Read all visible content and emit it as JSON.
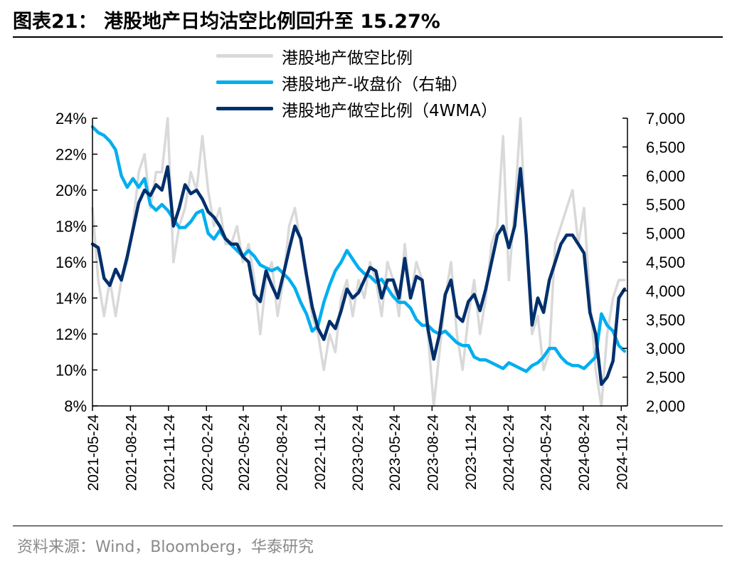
{
  "title": "图表21：  港股地产日均沽空比例回升至 15.27%",
  "source": "资料来源：Wind，Bloomberg，华泰研究",
  "colors": {
    "short_ratio": "#d9d9d9",
    "close": "#00aeef",
    "wma": "#002f6c"
  },
  "chart_data": {
    "type": "line",
    "title": "港股地产日均沽空比例回升至 15.27%",
    "xlabel": "",
    "ylabel_left": "",
    "ylabel_right": "",
    "left_axis": {
      "ylim": [
        0.08,
        0.24
      ],
      "ticks": [
        "8%",
        "10%",
        "12%",
        "14%",
        "16%",
        "18%",
        "20%",
        "22%",
        "24%"
      ]
    },
    "right_axis": {
      "ylim": [
        2000,
        7000
      ],
      "ticks": [
        "2,000",
        "2,500",
        "3,000",
        "3,500",
        "4,000",
        "4,500",
        "5,000",
        "5,500",
        "6,000",
        "6,500",
        "7,000"
      ]
    },
    "x_ticks": [
      "2021-05-24",
      "2021-08-24",
      "2021-11-24",
      "2022-02-24",
      "2022-05-24",
      "2022-08-24",
      "2022-11-24",
      "2023-02-24",
      "2023-05-24",
      "2023-08-24",
      "2023-11-24",
      "2024-02-24",
      "2024-05-24",
      "2024-08-24",
      "2024-11-24"
    ],
    "legend": [
      "港股地产做空比例",
      "港股地产-收盘价（右轴）",
      "港股地产做空比例（4WMA）"
    ],
    "legend_position": "top",
    "grid": false,
    "series": [
      {
        "name": "港股地产做空比例",
        "axis": "left",
        "x": [
          "2021-05-24",
          "2021-06-07",
          "2021-06-21",
          "2021-07-05",
          "2021-07-19",
          "2021-08-02",
          "2021-08-16",
          "2021-08-30",
          "2021-09-13",
          "2021-09-27",
          "2021-10-11",
          "2021-10-25",
          "2021-11-08",
          "2021-11-22",
          "2021-12-06",
          "2021-12-20",
          "2022-01-03",
          "2022-01-17",
          "2022-01-31",
          "2022-02-14",
          "2022-02-28",
          "2022-03-14",
          "2022-03-28",
          "2022-04-11",
          "2022-04-25",
          "2022-05-09",
          "2022-05-23",
          "2022-06-06",
          "2022-06-20",
          "2022-07-04",
          "2022-07-18",
          "2022-08-01",
          "2022-08-15",
          "2022-08-29",
          "2022-09-12",
          "2022-09-26",
          "2022-10-10",
          "2022-10-24",
          "2022-11-07",
          "2022-11-21",
          "2022-12-05",
          "2022-12-19",
          "2023-01-02",
          "2023-01-16",
          "2023-01-30",
          "2023-02-13",
          "2023-02-27",
          "2023-03-13",
          "2023-03-27",
          "2023-04-10",
          "2023-04-24",
          "2023-05-08",
          "2023-05-22",
          "2023-06-05",
          "2023-06-19",
          "2023-07-03",
          "2023-07-17",
          "2023-07-31",
          "2023-08-14",
          "2023-08-28",
          "2023-09-11",
          "2023-09-25",
          "2023-10-09",
          "2023-10-23",
          "2023-11-06",
          "2023-11-20",
          "2023-12-04",
          "2023-12-18",
          "2024-01-01",
          "2024-01-15",
          "2024-01-29",
          "2024-02-12",
          "2024-02-26",
          "2024-03-11",
          "2024-03-25",
          "2024-04-08",
          "2024-04-22",
          "2024-05-06",
          "2024-05-20",
          "2024-06-03",
          "2024-06-17",
          "2024-07-01",
          "2024-07-15",
          "2024-07-29",
          "2024-08-12",
          "2024-08-26",
          "2024-09-09",
          "2024-09-23",
          "2024-10-07",
          "2024-10-21",
          "2024-11-04",
          "2024-11-18",
          "2024-12-02"
        ],
        "values": [
          0.19,
          0.15,
          0.13,
          0.15,
          0.13,
          0.15,
          0.16,
          0.18,
          0.21,
          0.22,
          0.19,
          0.21,
          0.21,
          0.24,
          0.16,
          0.18,
          0.19,
          0.21,
          0.2,
          0.23,
          0.2,
          0.18,
          0.19,
          0.17,
          0.17,
          0.18,
          0.16,
          0.17,
          0.15,
          0.12,
          0.15,
          0.16,
          0.13,
          0.15,
          0.18,
          0.19,
          0.17,
          0.15,
          0.13,
          0.12,
          0.1,
          0.12,
          0.11,
          0.14,
          0.15,
          0.13,
          0.15,
          0.14,
          0.16,
          0.15,
          0.13,
          0.16,
          0.15,
          0.13,
          0.17,
          0.14,
          0.16,
          0.15,
          0.12,
          0.08,
          0.11,
          0.14,
          0.16,
          0.12,
          0.1,
          0.13,
          0.15,
          0.12,
          0.14,
          0.17,
          0.18,
          0.23,
          0.15,
          0.19,
          0.24,
          0.17,
          0.12,
          0.13,
          0.1,
          0.11,
          0.17,
          0.18,
          0.19,
          0.2,
          0.17,
          0.19,
          0.14,
          0.1,
          0.08,
          0.12,
          0.14,
          0.15,
          0.15
        ]
      },
      {
        "name": "港股地产-收盘价（右轴）",
        "axis": "right",
        "x": [
          "2021-05-24",
          "2021-06-07",
          "2021-06-21",
          "2021-07-05",
          "2021-07-19",
          "2021-08-02",
          "2021-08-16",
          "2021-08-30",
          "2021-09-13",
          "2021-09-27",
          "2021-10-11",
          "2021-10-25",
          "2021-11-08",
          "2021-11-22",
          "2021-12-06",
          "2021-12-20",
          "2022-01-03",
          "2022-01-17",
          "2022-01-31",
          "2022-02-14",
          "2022-02-28",
          "2022-03-14",
          "2022-03-28",
          "2022-04-11",
          "2022-04-25",
          "2022-05-09",
          "2022-05-23",
          "2022-06-06",
          "2022-06-20",
          "2022-07-04",
          "2022-07-18",
          "2022-08-01",
          "2022-08-15",
          "2022-08-29",
          "2022-09-12",
          "2022-09-26",
          "2022-10-10",
          "2022-10-24",
          "2022-11-07",
          "2022-11-21",
          "2022-12-05",
          "2022-12-19",
          "2023-01-02",
          "2023-01-16",
          "2023-01-30",
          "2023-02-13",
          "2023-02-27",
          "2023-03-13",
          "2023-03-27",
          "2023-04-10",
          "2023-04-24",
          "2023-05-08",
          "2023-05-22",
          "2023-06-05",
          "2023-06-19",
          "2023-07-03",
          "2023-07-17",
          "2023-07-31",
          "2023-08-14",
          "2023-08-28",
          "2023-09-11",
          "2023-09-25",
          "2023-10-09",
          "2023-10-23",
          "2023-11-06",
          "2023-11-20",
          "2023-12-04",
          "2023-12-18",
          "2024-01-01",
          "2024-01-15",
          "2024-01-29",
          "2024-02-12",
          "2024-02-26",
          "2024-03-11",
          "2024-03-25",
          "2024-04-08",
          "2024-04-22",
          "2024-05-06",
          "2024-05-20",
          "2024-06-03",
          "2024-06-17",
          "2024-07-01",
          "2024-07-15",
          "2024-07-29",
          "2024-08-12",
          "2024-08-26",
          "2024-09-09",
          "2024-09-23",
          "2024-10-07",
          "2024-10-21",
          "2024-11-04",
          "2024-11-18",
          "2024-12-02"
        ],
        "values": [
          6850,
          6750,
          6700,
          6600,
          6450,
          6000,
          5800,
          5950,
          5800,
          5950,
          5500,
          5400,
          5500,
          5400,
          5250,
          5100,
          5100,
          5200,
          5350,
          5400,
          5000,
          4900,
          5050,
          4900,
          4800,
          4700,
          4600,
          4700,
          4600,
          4450,
          4400,
          4350,
          4400,
          4300,
          4200,
          4050,
          3800,
          3600,
          3300,
          3400,
          3800,
          4100,
          4350,
          4500,
          4700,
          4550,
          4400,
          4300,
          4250,
          4150,
          4200,
          4050,
          3900,
          3800,
          3800,
          3700,
          3500,
          3400,
          3400,
          3300,
          3250,
          3300,
          3200,
          3100,
          3050,
          3050,
          2850,
          2800,
          2800,
          2750,
          2700,
          2650,
          2750,
          2700,
          2650,
          2600,
          2700,
          2750,
          2850,
          3000,
          3000,
          2850,
          2750,
          2700,
          2700,
          2650,
          2750,
          2850,
          3600,
          3400,
          3300,
          3050,
          2950
        ]
      },
      {
        "name": "港股地产做空比例（4WMA）",
        "axis": "left",
        "x": [
          "2021-05-24",
          "2021-06-07",
          "2021-06-21",
          "2021-07-05",
          "2021-07-19",
          "2021-08-02",
          "2021-08-16",
          "2021-08-30",
          "2021-09-13",
          "2021-09-27",
          "2021-10-11",
          "2021-10-25",
          "2021-11-08",
          "2021-11-22",
          "2021-12-06",
          "2021-12-20",
          "2022-01-03",
          "2022-01-17",
          "2022-01-31",
          "2022-02-14",
          "2022-02-28",
          "2022-03-14",
          "2022-03-28",
          "2022-04-11",
          "2022-04-25",
          "2022-05-09",
          "2022-05-23",
          "2022-06-06",
          "2022-06-20",
          "2022-07-04",
          "2022-07-18",
          "2022-08-01",
          "2022-08-15",
          "2022-08-29",
          "2022-09-12",
          "2022-09-26",
          "2022-10-10",
          "2022-10-24",
          "2022-11-07",
          "2022-11-21",
          "2022-12-05",
          "2022-12-19",
          "2023-01-02",
          "2023-01-16",
          "2023-01-30",
          "2023-02-13",
          "2023-02-27",
          "2023-03-13",
          "2023-03-27",
          "2023-04-10",
          "2023-04-24",
          "2023-05-08",
          "2023-05-22",
          "2023-06-05",
          "2023-06-19",
          "2023-07-03",
          "2023-07-17",
          "2023-07-31",
          "2023-08-14",
          "2023-08-28",
          "2023-09-11",
          "2023-09-25",
          "2023-10-09",
          "2023-10-23",
          "2023-11-06",
          "2023-11-20",
          "2023-12-04",
          "2023-12-18",
          "2024-01-01",
          "2024-01-15",
          "2024-01-29",
          "2024-02-12",
          "2024-02-26",
          "2024-03-11",
          "2024-03-25",
          "2024-04-08",
          "2024-04-22",
          "2024-05-06",
          "2024-05-20",
          "2024-06-03",
          "2024-06-17",
          "2024-07-01",
          "2024-07-15",
          "2024-07-29",
          "2024-08-12",
          "2024-08-26",
          "2024-09-09",
          "2024-09-23",
          "2024-10-07",
          "2024-10-21",
          "2024-11-04",
          "2024-11-18",
          "2024-12-02"
        ],
        "values": [
          0.17,
          0.168,
          0.151,
          0.147,
          0.156,
          0.15,
          0.163,
          0.178,
          0.193,
          0.2,
          0.197,
          0.203,
          0.2,
          0.213,
          0.18,
          0.19,
          0.203,
          0.198,
          0.2,
          0.195,
          0.188,
          0.185,
          0.18,
          0.173,
          0.17,
          0.17,
          0.163,
          0.16,
          0.142,
          0.138,
          0.155,
          0.147,
          0.14,
          0.153,
          0.167,
          0.18,
          0.173,
          0.153,
          0.135,
          0.123,
          0.117,
          0.127,
          0.123,
          0.133,
          0.145,
          0.14,
          0.143,
          0.15,
          0.157,
          0.155,
          0.14,
          0.15,
          0.15,
          0.14,
          0.162,
          0.14,
          0.152,
          0.15,
          0.123,
          0.106,
          0.12,
          0.142,
          0.15,
          0.13,
          0.127,
          0.138,
          0.142,
          0.133,
          0.145,
          0.16,
          0.175,
          0.18,
          0.168,
          0.18,
          0.212,
          0.175,
          0.125,
          0.14,
          0.132,
          0.15,
          0.16,
          0.17,
          0.175,
          0.175,
          0.17,
          0.165,
          0.132,
          0.12,
          0.092,
          0.096,
          0.105,
          0.14,
          0.145
        ]
      }
    ]
  }
}
